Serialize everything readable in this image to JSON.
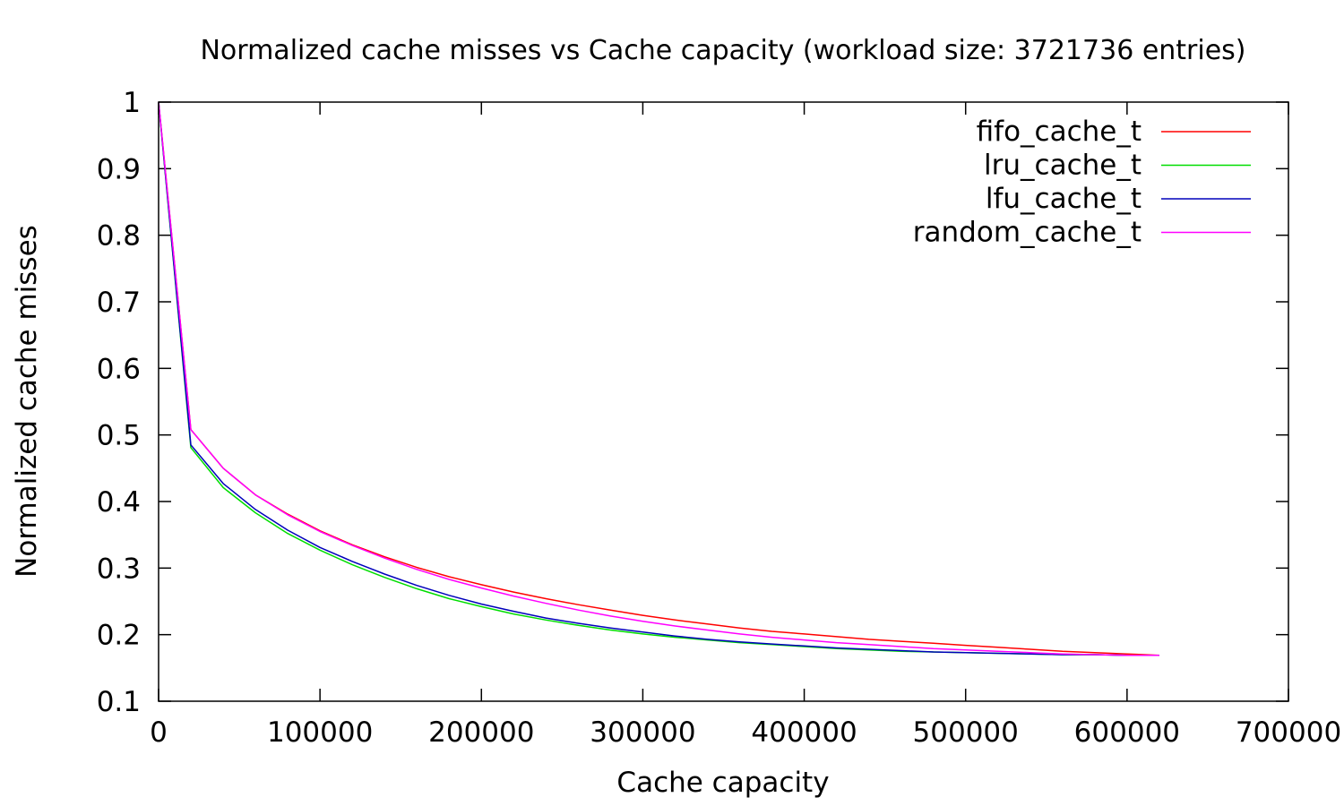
{
  "chart_data": {
    "type": "line",
    "title": "Normalized cache misses vs Cache capacity (workload size: 3721736 entries)",
    "xlabel": "Cache capacity",
    "ylabel": "Normalized cache misses",
    "xlim": [
      0,
      700000
    ],
    "ylim": [
      0.1,
      1
    ],
    "xticks": [
      0,
      100000,
      200000,
      300000,
      400000,
      500000,
      600000,
      700000
    ],
    "yticks": [
      0.1,
      0.2,
      0.3,
      0.4,
      0.5,
      0.6,
      0.7,
      0.8,
      0.9,
      1
    ],
    "xtick_labels": [
      "0",
      "100000",
      "200000",
      "300000",
      "400000",
      "500000",
      "600000",
      "700000"
    ],
    "ytick_labels": [
      "0.1",
      "0.2",
      "0.3",
      "0.4",
      "0.5",
      "0.6",
      "0.7",
      "0.8",
      "0.9",
      "1"
    ],
    "grid": false,
    "legend_position": "top-right",
    "x": [
      0,
      20000,
      40000,
      60000,
      80000,
      100000,
      120000,
      140000,
      160000,
      180000,
      200000,
      220000,
      240000,
      260000,
      280000,
      300000,
      320000,
      340000,
      360000,
      380000,
      400000,
      420000,
      440000,
      460000,
      480000,
      500000,
      520000,
      540000,
      560000,
      580000,
      600000,
      620000
    ],
    "series": [
      {
        "name": "fifo_cache_t",
        "color": "#ff0000",
        "values": [
          1.0,
          0.508,
          0.45,
          0.41,
          0.381,
          0.356,
          0.335,
          0.317,
          0.301,
          0.287,
          0.275,
          0.264,
          0.254,
          0.245,
          0.237,
          0.229,
          0.222,
          0.216,
          0.21,
          0.205,
          0.201,
          0.197,
          0.193,
          0.19,
          0.187,
          0.184,
          0.181,
          0.178,
          0.175,
          0.173,
          0.171,
          0.169
        ]
      },
      {
        "name": "lru_cache_t",
        "color": "#00dd00",
        "values": [
          1.0,
          0.481,
          0.421,
          0.383,
          0.352,
          0.327,
          0.305,
          0.286,
          0.269,
          0.254,
          0.242,
          0.231,
          0.222,
          0.214,
          0.207,
          0.201,
          0.196,
          0.192,
          0.188,
          0.185,
          0.182,
          0.179,
          0.177,
          0.175,
          0.174,
          0.173,
          0.172,
          0.171,
          0.17,
          0.17,
          0.169,
          0.169
        ]
      },
      {
        "name": "lfu_cache_t",
        "color": "#0000bb",
        "values": [
          1.0,
          0.485,
          0.427,
          0.388,
          0.357,
          0.331,
          0.31,
          0.291,
          0.274,
          0.259,
          0.246,
          0.235,
          0.225,
          0.217,
          0.21,
          0.204,
          0.198,
          0.193,
          0.189,
          0.186,
          0.183,
          0.18,
          0.178,
          0.176,
          0.174,
          0.173,
          0.172,
          0.171,
          0.17,
          0.17,
          0.169,
          0.169
        ]
      },
      {
        "name": "random_cache_t",
        "color": "#ff00ff",
        "values": [
          1.0,
          0.508,
          0.45,
          0.41,
          0.38,
          0.355,
          0.334,
          0.315,
          0.298,
          0.283,
          0.27,
          0.258,
          0.247,
          0.237,
          0.228,
          0.22,
          0.213,
          0.207,
          0.201,
          0.196,
          0.192,
          0.188,
          0.185,
          0.182,
          0.179,
          0.177,
          0.175,
          0.173,
          0.171,
          0.17,
          0.169,
          0.169
        ]
      }
    ]
  }
}
